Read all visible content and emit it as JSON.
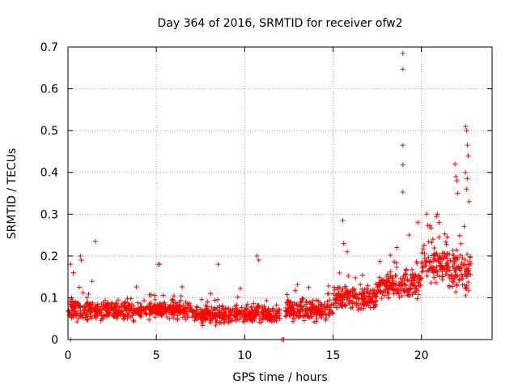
{
  "chart_data": {
    "type": "scatter",
    "title": "Day 364 of 2016, SRMTID for receiver ofw2",
    "xlabel": "GPS time / hours",
    "ylabel": "SRMTID / TECUs",
    "xlim": [
      0,
      24
    ],
    "ylim": [
      0,
      0.7
    ],
    "xticks": [
      0,
      5,
      10,
      15,
      20
    ],
    "yticks": [
      0,
      0.1,
      0.2,
      0.3,
      0.4,
      0.5,
      0.6,
      0.7
    ],
    "xtick_labels": [
      "0",
      "5",
      "10",
      "15",
      "20"
    ],
    "ytick_labels": [
      "0",
      "0.1",
      "0.2",
      "0.3",
      "0.4",
      "0.5",
      "0.6",
      "0.7"
    ],
    "grid": true,
    "marker": "+",
    "color": "#ff0000",
    "series": [
      {
        "name": "SRMTID",
        "bands": [
          {
            "x_start": 0.0,
            "x_end": 2.0,
            "center": 0.07,
            "spread": 0.035
          },
          {
            "x_start": 2.0,
            "x_end": 7.0,
            "center": 0.07,
            "spread": 0.03
          },
          {
            "x_start": 7.0,
            "x_end": 12.0,
            "center": 0.06,
            "spread": 0.03
          },
          {
            "x_start": 12.3,
            "x_end": 15.0,
            "center": 0.07,
            "spread": 0.035
          },
          {
            "x_start": 15.0,
            "x_end": 17.5,
            "center": 0.1,
            "spread": 0.04
          },
          {
            "x_start": 17.5,
            "x_end": 20.0,
            "center": 0.13,
            "spread": 0.05
          },
          {
            "x_start": 20.0,
            "x_end": 21.5,
            "center": 0.18,
            "spread": 0.06
          },
          {
            "x_start": 21.5,
            "x_end": 22.8,
            "center": 0.16,
            "spread": 0.07
          }
        ],
        "points": [
          [
            0.15,
            0.18
          ],
          [
            0.3,
            0.16
          ],
          [
            0.7,
            0.2
          ],
          [
            0.75,
            0.19
          ],
          [
            1.55,
            0.235
          ],
          [
            5.1,
            0.18
          ],
          [
            5.2,
            0.18
          ],
          [
            10.7,
            0.2
          ],
          [
            10.8,
            0.19
          ],
          [
            8.5,
            0.18
          ],
          [
            15.55,
            0.285
          ],
          [
            15.6,
            0.23
          ],
          [
            15.8,
            0.21
          ],
          [
            18.6,
            0.22
          ],
          [
            18.95,
            0.685
          ],
          [
            18.95,
            0.647
          ],
          [
            18.95,
            0.465
          ],
          [
            18.95,
            0.418
          ],
          [
            18.95,
            0.353
          ],
          [
            19.3,
            0.25
          ],
          [
            19.8,
            0.28
          ],
          [
            20.3,
            0.3
          ],
          [
            20.9,
            0.3
          ],
          [
            21.0,
            0.28
          ],
          [
            21.9,
            0.42
          ],
          [
            21.95,
            0.39
          ],
          [
            22.0,
            0.38
          ],
          [
            22.05,
            0.35
          ],
          [
            22.5,
            0.51
          ],
          [
            22.55,
            0.5
          ],
          [
            22.6,
            0.465
          ],
          [
            22.65,
            0.44
          ],
          [
            22.5,
            0.4
          ],
          [
            22.6,
            0.385
          ],
          [
            22.55,
            0.36
          ],
          [
            22.7,
            0.33
          ],
          [
            0.15,
            0.0
          ],
          [
            12.1,
            0.0
          ],
          [
            12.2,
            0.0
          ]
        ]
      }
    ]
  }
}
